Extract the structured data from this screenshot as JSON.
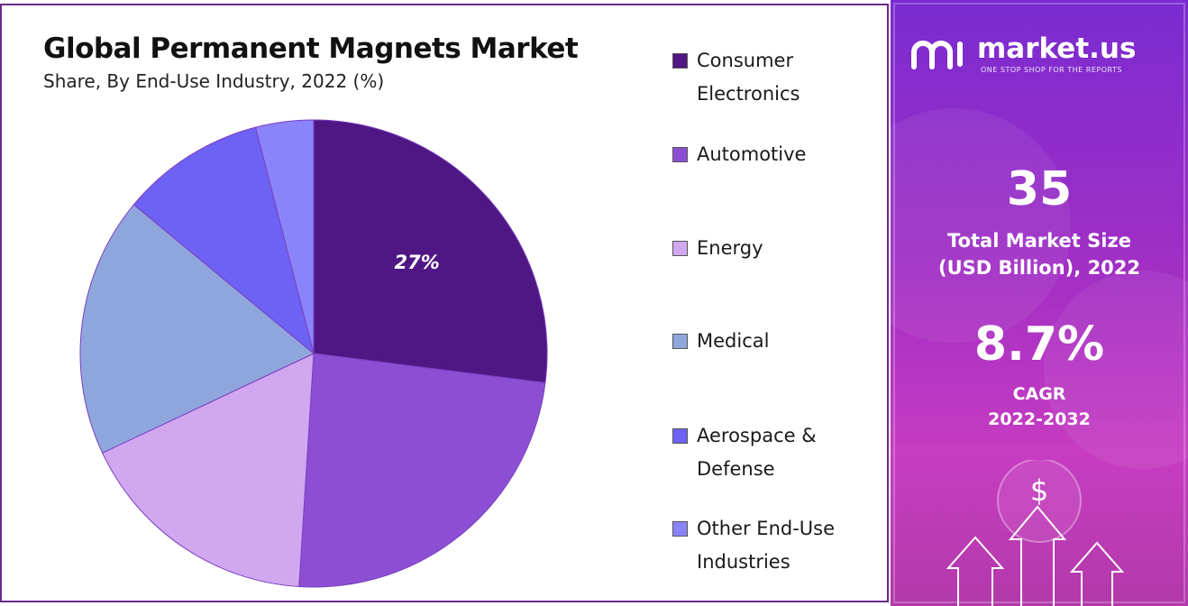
{
  "chart_data": {
    "type": "pie",
    "title": "Global Permanent Magnets Market",
    "subtitle": "Share, By End-Use Industry, 2022 (%)",
    "categories": [
      "Consumer Electronics",
      "Automotive",
      "Energy",
      "Medical",
      "Aerospace & Defense",
      "Other End-Use Industries"
    ],
    "values": [
      27,
      24,
      17,
      18,
      10,
      4
    ],
    "data_labels": [
      "27%",
      "",
      "",
      "",
      "",
      ""
    ],
    "colors": [
      "#4f1783",
      "#8c4fd4",
      "#d1a8f0",
      "#8fa6dd",
      "#6e62f4",
      "#8a84fa"
    ],
    "legend_position": "right"
  },
  "legend": {
    "items": [
      {
        "line1": "Consumer",
        "line2": "Electronics"
      },
      {
        "line1": "Automotive",
        "line2": ""
      },
      {
        "line1": "Energy",
        "line2": ""
      },
      {
        "line1": "Medical",
        "line2": ""
      },
      {
        "line1": "Aerospace &",
        "line2": "Defense"
      },
      {
        "line1": "Other End-Use",
        "line2": "Industries"
      }
    ]
  },
  "brand": {
    "name": "market.us",
    "tagline": "ONE STOP SHOP FOR THE REPORTS"
  },
  "stats": {
    "market_size_value": "35",
    "market_size_label_line1": "Total Market Size",
    "market_size_label_line2": "(USD Billion), 2022",
    "cagr_value": "8.7%",
    "cagr_label_line1": "CAGR",
    "cagr_label_line2": "2022-2032"
  },
  "decoration": {
    "dollar_symbol": "$"
  }
}
